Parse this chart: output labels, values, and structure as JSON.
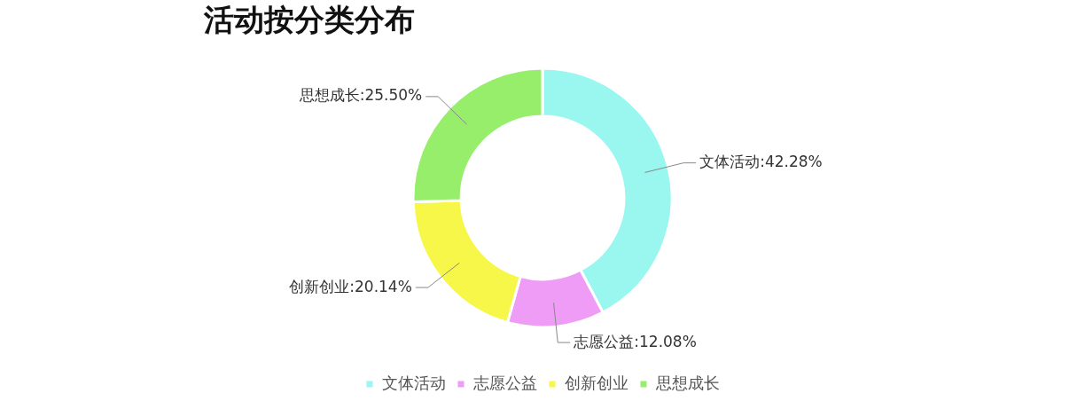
{
  "chart_data": {
    "type": "donut",
    "title": "活动按分类分布",
    "categories": [
      "文体活动",
      "志愿公益",
      "创新创业",
      "思想成长"
    ],
    "values": [
      42.28,
      12.08,
      20.14,
      25.5
    ],
    "value_labels": [
      ":42.28%",
      ":12.08%",
      ":20.14%",
      ":25.50%"
    ],
    "colors": [
      "#99f7ef",
      "#ee9cf5",
      "#f7f74a",
      "#96ee6a"
    ],
    "legend": "bottom"
  }
}
